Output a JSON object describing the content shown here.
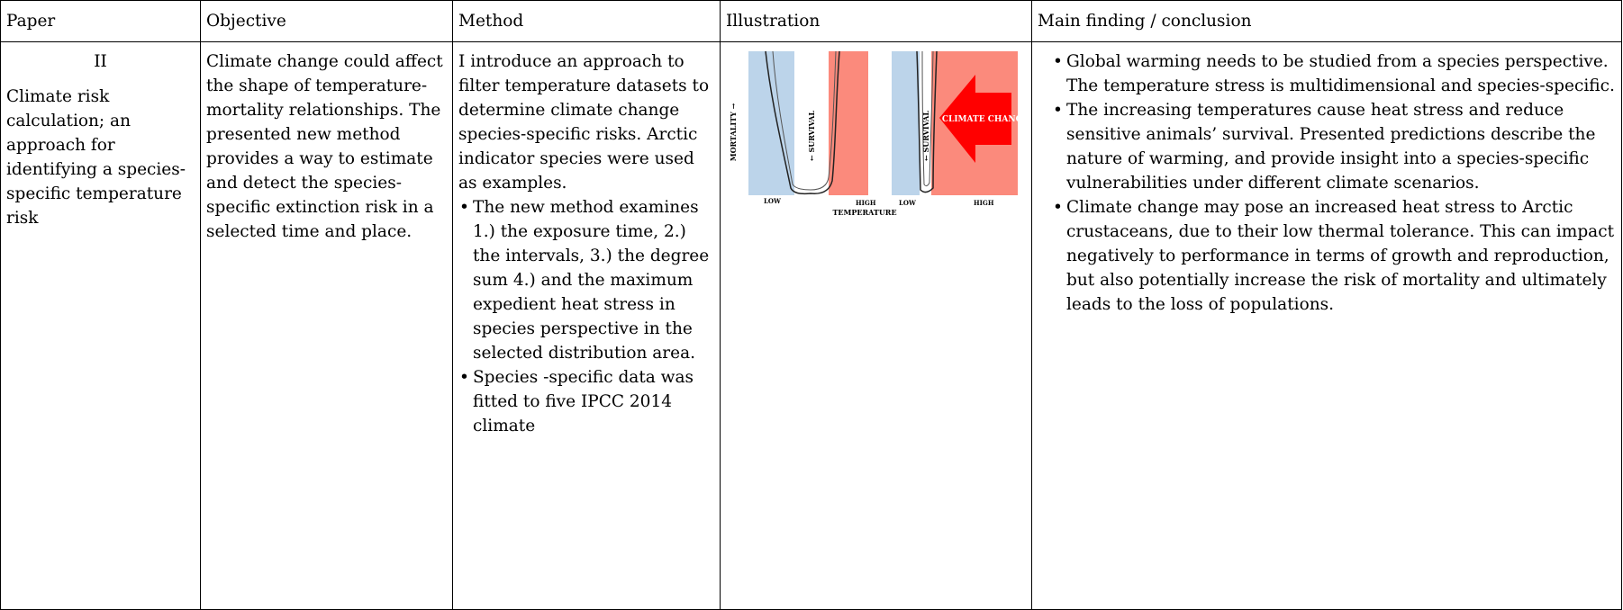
{
  "table": {
    "headers": [
      "Paper",
      "Objective",
      "Method",
      "Illustration",
      "Main finding / conclusion"
    ],
    "row": {
      "paper": {
        "number": "II",
        "title": "Climate risk calculation; an approach for identifying a species-specific temperature risk"
      },
      "objective": "Climate change could affect the shape of temperature-mortality relationships. The presented new method provides a way to estimate and detect the species-specific extinction risk in a selected time and place.",
      "method": {
        "intro": "I introduce an approach to filter temperature datasets to determine climate change species-specific risks. Arctic indicator species were used as examples.",
        "bullets": [
          "The new method examines 1.) the exposure time, 2.) the intervals, 3.) the degree sum 4.) and the maximum expedient heat stress in species perspective in the selected distribution area.",
          "Species -specific data was fitted to five IPCC 2014 climate"
        ]
      },
      "illustration": {
        "y_label": "MORTALITY →",
        "survival_label": "← SURVIVAL",
        "arrow_label": "CLIMATE CHANGE",
        "low_label": "LOW",
        "high_label": "HIGH",
        "x_label": "TEMPERATURE"
      },
      "findings": [
        "Global warming needs to be studied from a species perspective. The temperature stress is multidimensional and species-specific.",
        "The increasing temperatures cause heat stress and reduce sensitive animals’ survival. Presented predictions describe the nature of warming, and provide insight into a species-specific vulnerabilities under different climate scenarios.",
        "Climate change may pose an increased heat stress to Arctic crustaceans, due to their low thermal tolerance. This can impact negatively to performance in terms of growth and reproduction, but also potentially increase the risk of mortality and ultimately leads to the loss of populations."
      ]
    }
  }
}
